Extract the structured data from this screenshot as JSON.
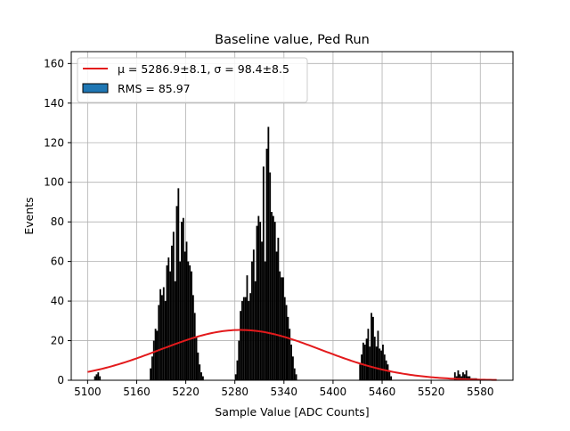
{
  "chart_data": {
    "type": "histogram",
    "title": "Baseline value, Ped Run",
    "xlabel": "Sample Value [ADC Counts]",
    "ylabel": "Events",
    "xlim": [
      5080,
      5620
    ],
    "ylim": [
      0,
      166
    ],
    "xticks": [
      5100,
      5160,
      5220,
      5280,
      5340,
      5400,
      5460,
      5520,
      5580
    ],
    "yticks": [
      0,
      20,
      40,
      60,
      80,
      100,
      120,
      140,
      160
    ],
    "grid": true,
    "legend_position": "top-left",
    "legend": [
      {
        "label": "μ = 5286.9±8.1, σ = 98.4±8.5",
        "kind": "line",
        "color": "#e31a1c"
      },
      {
        "label": "RMS = 85.97",
        "kind": "patch",
        "color": "#1f77b4"
      }
    ],
    "histogram": {
      "bin_width": 2,
      "bar_color": "#000000",
      "bins": [
        {
          "x": 5108,
          "y": 2
        },
        {
          "x": 5110,
          "y": 3
        },
        {
          "x": 5112,
          "y": 4
        },
        {
          "x": 5114,
          "y": 2
        },
        {
          "x": 5176,
          "y": 6
        },
        {
          "x": 5178,
          "y": 12
        },
        {
          "x": 5180,
          "y": 20
        },
        {
          "x": 5182,
          "y": 26
        },
        {
          "x": 5184,
          "y": 25
        },
        {
          "x": 5186,
          "y": 38
        },
        {
          "x": 5188,
          "y": 46
        },
        {
          "x": 5190,
          "y": 43
        },
        {
          "x": 5192,
          "y": 47
        },
        {
          "x": 5194,
          "y": 40
        },
        {
          "x": 5196,
          "y": 58
        },
        {
          "x": 5198,
          "y": 62
        },
        {
          "x": 5200,
          "y": 55
        },
        {
          "x": 5202,
          "y": 68
        },
        {
          "x": 5204,
          "y": 75
        },
        {
          "x": 5206,
          "y": 50
        },
        {
          "x": 5208,
          "y": 88
        },
        {
          "x": 5210,
          "y": 97
        },
        {
          "x": 5212,
          "y": 60
        },
        {
          "x": 5214,
          "y": 80
        },
        {
          "x": 5216,
          "y": 82
        },
        {
          "x": 5218,
          "y": 65
        },
        {
          "x": 5220,
          "y": 70
        },
        {
          "x": 5222,
          "y": 60
        },
        {
          "x": 5224,
          "y": 58
        },
        {
          "x": 5226,
          "y": 55
        },
        {
          "x": 5228,
          "y": 43
        },
        {
          "x": 5230,
          "y": 34
        },
        {
          "x": 5232,
          "y": 22
        },
        {
          "x": 5234,
          "y": 14
        },
        {
          "x": 5236,
          "y": 8
        },
        {
          "x": 5238,
          "y": 4
        },
        {
          "x": 5240,
          "y": 2
        },
        {
          "x": 5280,
          "y": 3
        },
        {
          "x": 5282,
          "y": 10
        },
        {
          "x": 5284,
          "y": 20
        },
        {
          "x": 5286,
          "y": 35
        },
        {
          "x": 5288,
          "y": 40
        },
        {
          "x": 5290,
          "y": 42
        },
        {
          "x": 5292,
          "y": 42
        },
        {
          "x": 5294,
          "y": 53
        },
        {
          "x": 5296,
          "y": 40
        },
        {
          "x": 5298,
          "y": 44
        },
        {
          "x": 5300,
          "y": 60
        },
        {
          "x": 5302,
          "y": 66
        },
        {
          "x": 5304,
          "y": 50
        },
        {
          "x": 5306,
          "y": 78
        },
        {
          "x": 5308,
          "y": 83
        },
        {
          "x": 5310,
          "y": 80
        },
        {
          "x": 5312,
          "y": 70
        },
        {
          "x": 5314,
          "y": 108
        },
        {
          "x": 5316,
          "y": 60
        },
        {
          "x": 5318,
          "y": 117
        },
        {
          "x": 5320,
          "y": 128
        },
        {
          "x": 5322,
          "y": 105
        },
        {
          "x": 5324,
          "y": 85
        },
        {
          "x": 5326,
          "y": 83
        },
        {
          "x": 5328,
          "y": 80
        },
        {
          "x": 5330,
          "y": 65
        },
        {
          "x": 5332,
          "y": 72
        },
        {
          "x": 5334,
          "y": 55
        },
        {
          "x": 5336,
          "y": 52
        },
        {
          "x": 5338,
          "y": 52
        },
        {
          "x": 5340,
          "y": 42
        },
        {
          "x": 5342,
          "y": 38
        },
        {
          "x": 5344,
          "y": 32
        },
        {
          "x": 5346,
          "y": 26
        },
        {
          "x": 5348,
          "y": 18
        },
        {
          "x": 5350,
          "y": 12
        },
        {
          "x": 5352,
          "y": 6
        },
        {
          "x": 5354,
          "y": 3
        },
        {
          "x": 5432,
          "y": 8
        },
        {
          "x": 5434,
          "y": 13
        },
        {
          "x": 5436,
          "y": 19
        },
        {
          "x": 5438,
          "y": 18
        },
        {
          "x": 5440,
          "y": 21
        },
        {
          "x": 5442,
          "y": 26
        },
        {
          "x": 5444,
          "y": 17
        },
        {
          "x": 5446,
          "y": 34
        },
        {
          "x": 5448,
          "y": 32
        },
        {
          "x": 5450,
          "y": 22
        },
        {
          "x": 5452,
          "y": 17
        },
        {
          "x": 5454,
          "y": 25
        },
        {
          "x": 5456,
          "y": 16
        },
        {
          "x": 5458,
          "y": 15
        },
        {
          "x": 5460,
          "y": 18
        },
        {
          "x": 5462,
          "y": 13
        },
        {
          "x": 5464,
          "y": 10
        },
        {
          "x": 5466,
          "y": 8
        },
        {
          "x": 5468,
          "y": 5
        },
        {
          "x": 5470,
          "y": 2
        },
        {
          "x": 5548,
          "y": 4
        },
        {
          "x": 5550,
          "y": 2
        },
        {
          "x": 5552,
          "y": 5
        },
        {
          "x": 5554,
          "y": 3
        },
        {
          "x": 5556,
          "y": 2
        },
        {
          "x": 5558,
          "y": 4
        },
        {
          "x": 5560,
          "y": 3
        },
        {
          "x": 5562,
          "y": 5
        },
        {
          "x": 5564,
          "y": 2
        },
        {
          "x": 5566,
          "y": 2
        },
        {
          "x": 5568,
          "y": 1
        },
        {
          "x": 5570,
          "y": 1
        },
        {
          "x": 5572,
          "y": 1
        },
        {
          "x": 5574,
          "y": 1
        }
      ]
    },
    "fit": {
      "function": "gaussian",
      "mu": 5286.9,
      "sigma": 98.4,
      "peak": 25.4,
      "x_range": [
        5100,
        5600
      ],
      "color": "#e31a1c"
    }
  }
}
